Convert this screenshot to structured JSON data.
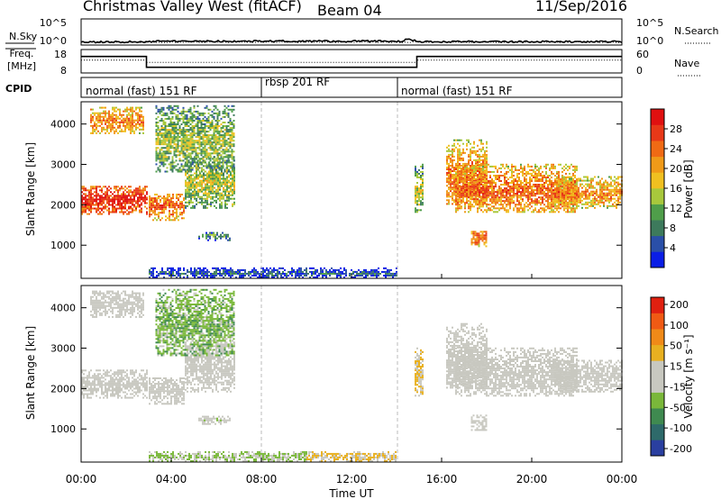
{
  "header": {
    "title": "Christmas Valley West (fitACF)",
    "beam": "Beam 04",
    "date": "11/Sep/2016"
  },
  "panels": {
    "nsky": {
      "label": "N.Sky",
      "right_label": "N.Search",
      "ticks_left": [
        "10^5",
        "10^0"
      ],
      "ticks_right": [
        "10^5",
        "10^0"
      ]
    },
    "freq": {
      "label_line1": "Freq.",
      "label_line2": "[MHz]",
      "right_label": "Nave",
      "ticks_left": [
        "18",
        "8"
      ],
      "ticks_right": [
        "60",
        "0"
      ]
    },
    "cpid": {
      "label": "CPID",
      "segments": [
        {
          "label": "normal (fast) 151 RF",
          "start": "00:00",
          "end": "08:00"
        },
        {
          "label": "rbsp 201 RF",
          "start": "08:00",
          "end": "14:00"
        },
        {
          "label": "normal (fast) 151 RF",
          "start": "14:00",
          "end": "24:00"
        }
      ]
    }
  },
  "axes": {
    "ylabel": "Slant Range [km]",
    "xlabel": "Time UT",
    "yticks": [
      "1000",
      "2000",
      "3000",
      "4000"
    ],
    "xticks": [
      "00:00",
      "04:00",
      "08:00",
      "12:00",
      "16:00",
      "20:00",
      "00:00"
    ]
  },
  "colorbars": {
    "power": {
      "label": "Power [dB]",
      "ticks": [
        "4",
        "8",
        "12",
        "16",
        "20",
        "24",
        "28"
      ],
      "colors": [
        "#0a1ee6",
        "#2a4fa8",
        "#3d7a5c",
        "#4f9e4a",
        "#a8c83c",
        "#f0c020",
        "#f09a18",
        "#f06a14",
        "#e83818",
        "#e01010"
      ]
    },
    "velocity": {
      "label": "Velocity [m s⁻¹]",
      "ticks": [
        "200",
        "100",
        "50",
        "15",
        "-15",
        "-50",
        "-100",
        "-200"
      ],
      "colors": [
        "#2a3fa0",
        "#2e6a6a",
        "#3f8a50",
        "#7ab83a",
        "#c8c8c0",
        "#c8c8c0",
        "#e8b020",
        "#f08a18",
        "#f05a14",
        "#e02010"
      ]
    }
  },
  "chart_data": [
    {
      "type": "line",
      "title": "N.Sky / N.Search",
      "x_range": [
        "00:00",
        "24:00"
      ],
      "series": [
        {
          "name": "N.Sky",
          "x_hours": [
            0,
            3,
            3.5,
            8,
            12,
            14.2,
            14.5,
            15,
            24
          ],
          "values_log10": [
            0.4,
            0.5,
            0.6,
            0.6,
            0.6,
            0.6,
            1.0,
            0.5,
            0.5
          ]
        }
      ],
      "ylim_log10": [
        0,
        5
      ]
    },
    {
      "type": "line",
      "title": "Freq / Nave",
      "x_range": [
        "00:00",
        "24:00"
      ],
      "series": [
        {
          "name": "Freq.",
          "x_hours": [
            0,
            2.9,
            2.9,
            14.9,
            14.9,
            24
          ],
          "values": [
            15.2,
            15.2,
            10.2,
            10.2,
            15.2,
            15.2
          ]
        },
        {
          "name": "Nave",
          "x_hours": [
            0,
            2.9,
            2.9,
            14.9,
            14.9,
            24
          ],
          "values": [
            33,
            33,
            27,
            27,
            33,
            33
          ]
        }
      ],
      "ylim_freq": [
        8,
        18
      ],
      "ylim_nave": [
        0,
        60
      ]
    },
    {
      "type": "heatmap",
      "title": "Power [dB]",
      "xlabel": "Time UT",
      "ylabel": "Slant Range [km]",
      "x_range_hours": [
        0,
        24
      ],
      "ylim": [
        180,
        4550
      ],
      "clim": [
        0,
        30
      ],
      "regions": [
        {
          "t0": 0.0,
          "t1": 2.9,
          "r0": 1750,
          "r1": 2450,
          "center": 2100,
          "value": 28
        },
        {
          "t0": 3.0,
          "t1": 4.6,
          "r0": 1600,
          "r1": 2250,
          "center": 1950,
          "value": 24
        },
        {
          "t0": 4.6,
          "t1": 6.8,
          "r0": 1900,
          "r1": 3200,
          "center": 2500,
          "value": 15
        },
        {
          "t0": 0.4,
          "t1": 2.8,
          "r0": 3750,
          "r1": 4400,
          "center": 4050,
          "value": 22
        },
        {
          "t0": 3.3,
          "t1": 6.8,
          "r0": 2800,
          "r1": 4450,
          "center": 3550,
          "value": 14
        },
        {
          "t0": 5.2,
          "t1": 6.6,
          "r0": 1100,
          "r1": 1300,
          "center": 1200,
          "value": 10
        },
        {
          "t0": 16.2,
          "t1": 18.0,
          "r0": 2000,
          "r1": 3600,
          "center": 2600,
          "value": 23
        },
        {
          "t0": 16.6,
          "t1": 22.0,
          "r0": 1800,
          "r1": 3000,
          "center": 2300,
          "value": 23
        },
        {
          "t0": 21.0,
          "t1": 24.0,
          "r0": 1900,
          "r1": 2700,
          "center": 2250,
          "value": 21
        },
        {
          "t0": 17.3,
          "t1": 18.0,
          "r0": 950,
          "r1": 1350,
          "center": 1150,
          "value": 24
        },
        {
          "t0": 14.8,
          "t1": 15.2,
          "r0": 1800,
          "r1": 3000,
          "center": 2300,
          "value": 15
        },
        {
          "t0": 3.0,
          "t1": 14.0,
          "r0": 180,
          "r1": 420,
          "center": 280,
          "value": 6
        }
      ]
    },
    {
      "type": "heatmap",
      "title": "Velocity [m s⁻¹]",
      "xlabel": "Time UT",
      "ylabel": "Slant Range [km]",
      "x_range_hours": [
        0,
        24
      ],
      "ylim": [
        180,
        4550
      ],
      "clim": [
        -200,
        200
      ],
      "regions": [
        {
          "t0": 0.0,
          "t1": 2.9,
          "r0": 1750,
          "r1": 2450,
          "center": 2100,
          "value": 0
        },
        {
          "t0": 3.0,
          "t1": 4.6,
          "r0": 1600,
          "r1": 2250,
          "center": 1950,
          "value": 0
        },
        {
          "t0": 4.6,
          "t1": 6.8,
          "r0": 1900,
          "r1": 3200,
          "center": 2500,
          "value": 0
        },
        {
          "t0": 0.4,
          "t1": 2.8,
          "r0": 3750,
          "r1": 4400,
          "center": 4050,
          "value": 0
        },
        {
          "t0": 3.3,
          "t1": 6.8,
          "r0": 2800,
          "r1": 4450,
          "center": 3550,
          "value": -60
        },
        {
          "t0": 5.2,
          "t1": 6.6,
          "r0": 1100,
          "r1": 1300,
          "center": 1200,
          "value": -10
        },
        {
          "t0": 16.2,
          "t1": 18.0,
          "r0": 2000,
          "r1": 3600,
          "center": 2600,
          "value": 0
        },
        {
          "t0": 16.6,
          "t1": 22.0,
          "r0": 1800,
          "r1": 3000,
          "center": 2300,
          "value": 0
        },
        {
          "t0": 21.0,
          "t1": 24.0,
          "r0": 1900,
          "r1": 2700,
          "center": 2250,
          "value": 0
        },
        {
          "t0": 17.3,
          "t1": 18.0,
          "r0": 950,
          "r1": 1350,
          "center": 1150,
          "value": 0
        },
        {
          "t0": 14.8,
          "t1": 15.2,
          "r0": 1800,
          "r1": 3000,
          "center": 2300,
          "value": 40
        },
        {
          "t0": 3.0,
          "t1": 10.0,
          "r0": 180,
          "r1": 420,
          "center": 280,
          "value": -40
        },
        {
          "t0": 10.0,
          "t1": 14.0,
          "r0": 180,
          "r1": 420,
          "center": 280,
          "value": 40
        }
      ]
    }
  ]
}
